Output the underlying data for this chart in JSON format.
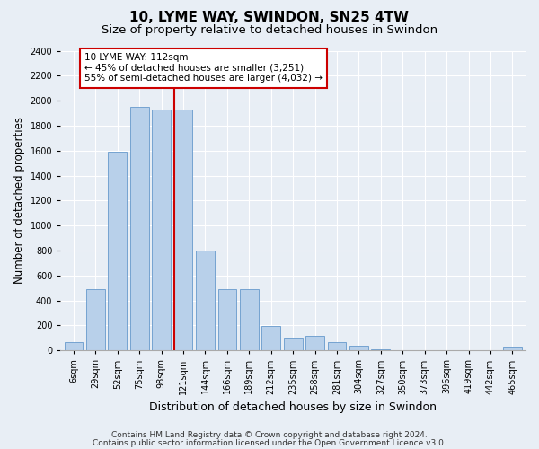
{
  "title": "10, LYME WAY, SWINDON, SN25 4TW",
  "subtitle": "Size of property relative to detached houses in Swindon",
  "xlabel": "Distribution of detached houses by size in Swindon",
  "ylabel": "Number of detached properties",
  "footer_line1": "Contains HM Land Registry data © Crown copyright and database right 2024.",
  "footer_line2": "Contains public sector information licensed under the Open Government Licence v3.0.",
  "categories": [
    "6sqm",
    "29sqm",
    "52sqm",
    "75sqm",
    "98sqm",
    "121sqm",
    "144sqm",
    "166sqm",
    "189sqm",
    "212sqm",
    "235sqm",
    "258sqm",
    "281sqm",
    "304sqm",
    "327sqm",
    "350sqm",
    "373sqm",
    "396sqm",
    "419sqm",
    "442sqm",
    "465sqm"
  ],
  "values": [
    70,
    490,
    1590,
    1950,
    1930,
    1930,
    800,
    490,
    490,
    195,
    100,
    120,
    70,
    35,
    10,
    0,
    0,
    0,
    0,
    0,
    30
  ],
  "bar_color": "#b8d0ea",
  "bar_edge_color": "#6699cc",
  "vline_color": "#cc0000",
  "vline_index": 5,
  "annotation_text": "10 LYME WAY: 112sqm\n← 45% of detached houses are smaller (3,251)\n55% of semi-detached houses are larger (4,032) →",
  "annotation_box_facecolor": "#ffffff",
  "annotation_box_edgecolor": "#cc0000",
  "ylim": [
    0,
    2400
  ],
  "yticks": [
    0,
    200,
    400,
    600,
    800,
    1000,
    1200,
    1400,
    1600,
    1800,
    2000,
    2200,
    2400
  ],
  "bg_color": "#e8eef5",
  "plot_bg_color": "#e8eef5",
  "title_fontsize": 11,
  "subtitle_fontsize": 9.5,
  "ylabel_fontsize": 8.5,
  "xlabel_fontsize": 9,
  "tick_fontsize": 7,
  "annot_fontsize": 7.5,
  "footer_fontsize": 6.5
}
